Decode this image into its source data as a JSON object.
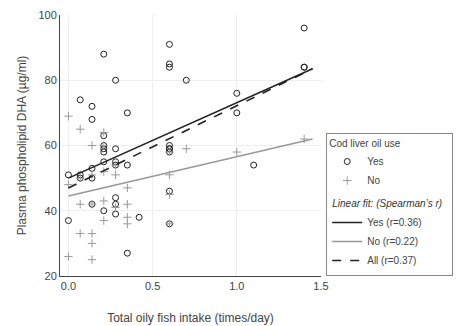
{
  "chart_data": {
    "type": "scatter",
    "x_label": "Total oily fish intake (times/day)",
    "y_label": "Plasma phospholipid DHA (µg/ml)",
    "xlim": [
      -0.05,
      1.5
    ],
    "ylim": [
      20,
      100
    ],
    "xticks": [
      {
        "value": 0,
        "label": "0.0"
      },
      0.5,
      {
        "value": 1.0,
        "label": "1.0"
      },
      1.5
    ],
    "yticks": [
      20,
      40,
      60,
      80,
      100
    ],
    "legend": "lower right",
    "legend_title": "Cod liver oil use",
    "legend_group_title": "Linear fit: (Spearman’s r)",
    "series": [
      {
        "name": "Yes",
        "type": "scatter",
        "marker": "circle-open",
        "color": "#222222",
        "x": [
          0.0,
          0.0,
          0.07,
          0.07,
          0.07,
          0.14,
          0.14,
          0.14,
          0.14,
          0.14,
          0.21,
          0.21,
          0.21,
          0.21,
          0.21,
          0.21,
          0.21,
          0.28,
          0.28,
          0.28,
          0.28,
          0.28,
          0.28,
          0.28,
          0.35,
          0.35,
          0.35,
          0.42,
          0.6,
          0.6,
          0.6,
          0.6,
          0.6,
          0.6,
          0.6,
          0.6,
          0.6,
          0.7,
          1.0,
          1.0,
          1.1,
          1.4,
          1.4,
          1.4
        ],
        "values": [
          51,
          37,
          50,
          51,
          74,
          42,
          50,
          53,
          68,
          72,
          40,
          55,
          58,
          59,
          60,
          63,
          88,
          39,
          42,
          44,
          54,
          55,
          59,
          80,
          27,
          54,
          70,
          38,
          36,
          46,
          58,
          59,
          60,
          84,
          85,
          91,
          59,
          80,
          70,
          76,
          54,
          84,
          84,
          96
        ]
      },
      {
        "name": "No",
        "type": "scatter",
        "marker": "plus",
        "color": "#999999",
        "x": [
          0.0,
          0.0,
          0.0,
          0.07,
          0.07,
          0.07,
          0.07,
          0.14,
          0.14,
          0.14,
          0.14,
          0.14,
          0.14,
          0.21,
          0.21,
          0.21,
          0.21,
          0.21,
          0.28,
          0.28,
          0.28,
          0.35,
          0.35,
          0.35,
          0.35,
          0.6,
          0.6,
          0.6,
          0.6,
          0.7,
          1.0,
          1.4
        ],
        "values": [
          26,
          48,
          69,
          33,
          42,
          50,
          65,
          25,
          30,
          33,
          42,
          51,
          60,
          37,
          43,
          52,
          60,
          64,
          41,
          51,
          54,
          36,
          38,
          42,
          47,
          36,
          45,
          51,
          58,
          59,
          58,
          62
        ]
      },
      {
        "name": "Yes (r=0.36)",
        "type": "line",
        "line_style": "solid",
        "color": "#222222",
        "x": [
          0.0,
          1.45
        ],
        "values": [
          50.0,
          83.5
        ]
      },
      {
        "name": "No (r=0.22)",
        "type": "line",
        "line_style": "solid",
        "color": "#999999",
        "x": [
          0.0,
          1.45
        ],
        "values": [
          44.5,
          62.0
        ]
      },
      {
        "name": "All (r=0.37)",
        "type": "line",
        "line_style": "dash",
        "color": "#222222",
        "x": [
          0.0,
          1.45
        ],
        "values": [
          47.0,
          83.5
        ]
      }
    ]
  }
}
